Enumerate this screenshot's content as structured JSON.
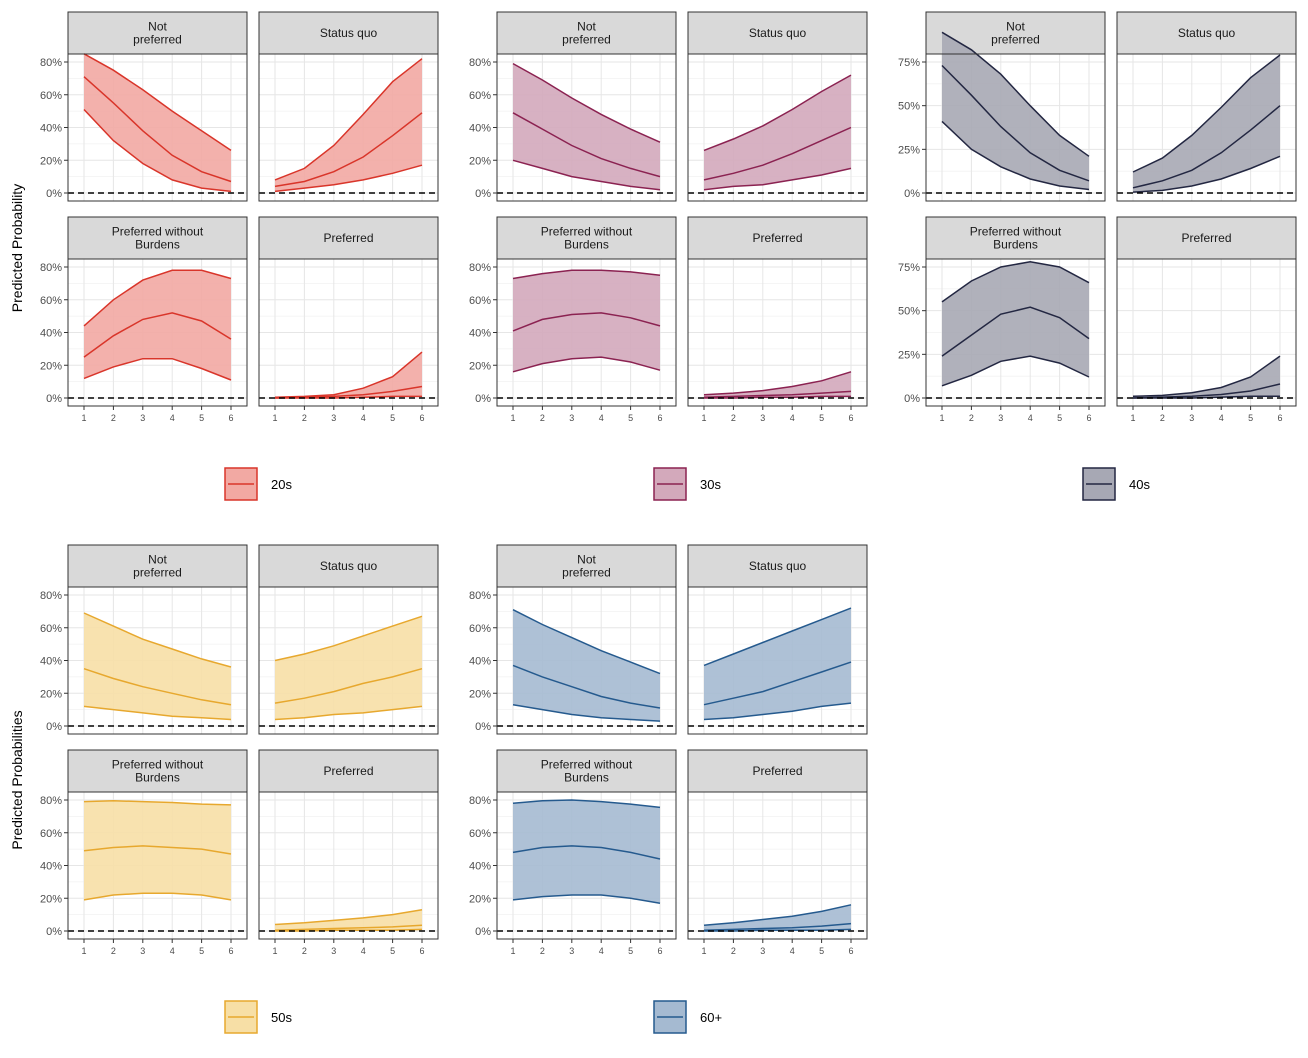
{
  "chart_data": [
    {
      "type": "line",
      "group": "20s",
      "ylabel": "Predicted Probability",
      "y_tick_labels": [
        "0%",
        "20%",
        "40%",
        "60%",
        "80%"
      ],
      "ylim": [
        0,
        0.9
      ],
      "x": [
        1,
        2,
        3,
        4,
        5,
        6
      ],
      "color": "#d9352a",
      "fill": "#f2a9a3",
      "legend_label": "20s",
      "facets": [
        {
          "label": "Not\npreferred",
          "estimate": [
            0.71,
            0.55,
            0.38,
            0.23,
            0.13,
            0.07
          ],
          "lower": [
            0.51,
            0.32,
            0.18,
            0.08,
            0.03,
            0.01
          ],
          "upper": [
            0.85,
            0.75,
            0.63,
            0.5,
            0.38,
            0.26
          ]
        },
        {
          "label": "Status quo",
          "estimate": [
            0.04,
            0.07,
            0.13,
            0.22,
            0.35,
            0.49
          ],
          "lower": [
            0.01,
            0.03,
            0.05,
            0.08,
            0.12,
            0.17
          ],
          "upper": [
            0.08,
            0.15,
            0.29,
            0.48,
            0.68,
            0.82
          ]
        },
        {
          "label": "Preferred without\nBurdens",
          "estimate": [
            0.25,
            0.38,
            0.48,
            0.52,
            0.47,
            0.36
          ],
          "lower": [
            0.12,
            0.19,
            0.24,
            0.24,
            0.18,
            0.11
          ],
          "upper": [
            0.44,
            0.6,
            0.72,
            0.78,
            0.78,
            0.73
          ]
        },
        {
          "label": "Preferred",
          "estimate": [
            0.0,
            0.005,
            0.01,
            0.02,
            0.04,
            0.07
          ],
          "lower": [
            0.0,
            0.0,
            0.0,
            0.005,
            0.01,
            0.01
          ],
          "upper": [
            0.005,
            0.01,
            0.02,
            0.06,
            0.13,
            0.28
          ]
        }
      ]
    },
    {
      "type": "line",
      "group": "30s",
      "ylabel": "",
      "y_tick_labels": [
        "0%",
        "20%",
        "40%",
        "60%",
        "80%"
      ],
      "ylim": [
        0,
        0.8
      ],
      "x": [
        1,
        2,
        3,
        4,
        5,
        6
      ],
      "color": "#8b2251",
      "fill": "#d3a9bb",
      "legend_label": "30s",
      "facets": [
        {
          "label": "Not\npreferred",
          "estimate": [
            0.49,
            0.39,
            0.29,
            0.21,
            0.15,
            0.1
          ],
          "lower": [
            0.2,
            0.15,
            0.1,
            0.07,
            0.04,
            0.02
          ],
          "upper": [
            0.79,
            0.69,
            0.58,
            0.48,
            0.39,
            0.31
          ]
        },
        {
          "label": "Status quo",
          "estimate": [
            0.08,
            0.12,
            0.17,
            0.24,
            0.32,
            0.4
          ],
          "lower": [
            0.02,
            0.04,
            0.05,
            0.08,
            0.11,
            0.15
          ],
          "upper": [
            0.26,
            0.33,
            0.41,
            0.51,
            0.62,
            0.72
          ]
        },
        {
          "label": "Preferred without\nBurdens",
          "estimate": [
            0.41,
            0.48,
            0.51,
            0.52,
            0.49,
            0.44
          ],
          "lower": [
            0.16,
            0.21,
            0.24,
            0.25,
            0.22,
            0.17
          ],
          "upper": [
            0.73,
            0.76,
            0.78,
            0.78,
            0.77,
            0.75
          ]
        },
        {
          "label": "Preferred",
          "estimate": [
            0.005,
            0.01,
            0.015,
            0.02,
            0.03,
            0.04
          ],
          "lower": [
            0.0,
            0.0,
            0.005,
            0.005,
            0.01,
            0.01
          ],
          "upper": [
            0.02,
            0.03,
            0.045,
            0.07,
            0.105,
            0.16
          ]
        }
      ]
    },
    {
      "type": "line",
      "group": "40s",
      "ylabel": "",
      "y_tick_labels": [
        "0%",
        "25%",
        "50%",
        "75%"
      ],
      "ylim": [
        0,
        0.95
      ],
      "x": [
        1,
        2,
        3,
        4,
        5,
        6
      ],
      "color": "#232742",
      "fill": "#a7a8b4",
      "legend_label": "40s",
      "facets": [
        {
          "label": "Not\npreferred",
          "estimate": [
            0.73,
            0.56,
            0.38,
            0.23,
            0.13,
            0.07
          ],
          "lower": [
            0.41,
            0.25,
            0.15,
            0.08,
            0.04,
            0.02
          ],
          "upper": [
            0.92,
            0.82,
            0.68,
            0.5,
            0.33,
            0.21
          ]
        },
        {
          "label": "Status quo",
          "estimate": [
            0.03,
            0.07,
            0.13,
            0.23,
            0.36,
            0.5
          ],
          "lower": [
            0.005,
            0.015,
            0.04,
            0.08,
            0.14,
            0.21
          ],
          "upper": [
            0.12,
            0.2,
            0.33,
            0.49,
            0.66,
            0.79
          ]
        },
        {
          "label": "Preferred without\nBurdens",
          "estimate": [
            0.24,
            0.36,
            0.48,
            0.52,
            0.46,
            0.34
          ],
          "lower": [
            0.07,
            0.13,
            0.21,
            0.24,
            0.2,
            0.12
          ],
          "upper": [
            0.55,
            0.67,
            0.75,
            0.78,
            0.75,
            0.66
          ]
        },
        {
          "label": "Preferred",
          "estimate": [
            0.0,
            0.005,
            0.01,
            0.02,
            0.04,
            0.08
          ],
          "lower": [
            0.0,
            0.0,
            0.0,
            0.005,
            0.01,
            0.01
          ],
          "upper": [
            0.01,
            0.015,
            0.03,
            0.06,
            0.12,
            0.24
          ]
        }
      ]
    },
    {
      "type": "line",
      "group": "50s",
      "ylabel": "Predicted Probabilities",
      "y_tick_labels": [
        "0%",
        "20%",
        "40%",
        "60%",
        "80%"
      ],
      "ylim": [
        0,
        0.8
      ],
      "x": [
        1,
        2,
        3,
        4,
        5,
        6
      ],
      "color": "#e7a82e",
      "fill": "#f7dfa6",
      "legend_label": "50s",
      "facets": [
        {
          "label": "Not\npreferred",
          "estimate": [
            0.35,
            0.29,
            0.24,
            0.2,
            0.16,
            0.13
          ],
          "lower": [
            0.12,
            0.1,
            0.08,
            0.06,
            0.05,
            0.04
          ],
          "upper": [
            0.69,
            0.61,
            0.53,
            0.47,
            0.41,
            0.36
          ]
        },
        {
          "label": "Status quo",
          "estimate": [
            0.14,
            0.17,
            0.21,
            0.26,
            0.3,
            0.35
          ],
          "lower": [
            0.04,
            0.05,
            0.07,
            0.08,
            0.1,
            0.12
          ],
          "upper": [
            0.4,
            0.44,
            0.49,
            0.55,
            0.61,
            0.67
          ]
        },
        {
          "label": "Preferred without\nBurdens",
          "estimate": [
            0.49,
            0.51,
            0.52,
            0.51,
            0.5,
            0.47
          ],
          "lower": [
            0.19,
            0.22,
            0.23,
            0.23,
            0.22,
            0.19
          ],
          "upper": [
            0.79,
            0.795,
            0.79,
            0.785,
            0.775,
            0.77
          ]
        },
        {
          "label": "Preferred",
          "estimate": [
            0.005,
            0.01,
            0.015,
            0.02,
            0.025,
            0.035
          ],
          "lower": [
            0.0,
            0.0,
            0.005,
            0.005,
            0.005,
            0.01
          ],
          "upper": [
            0.04,
            0.05,
            0.065,
            0.08,
            0.1,
            0.13
          ]
        }
      ]
    },
    {
      "type": "line",
      "group": "60+",
      "ylabel": "",
      "y_tick_labels": [
        "0%",
        "20%",
        "40%",
        "60%",
        "80%"
      ],
      "ylim": [
        0,
        0.8
      ],
      "x": [
        1,
        2,
        3,
        4,
        5,
        6
      ],
      "color": "#255a8e",
      "fill": "#a5bad1",
      "legend_label": "60+",
      "facets": [
        {
          "label": "Not\npreferred",
          "estimate": [
            0.37,
            0.3,
            0.24,
            0.18,
            0.14,
            0.11
          ],
          "lower": [
            0.13,
            0.1,
            0.07,
            0.05,
            0.04,
            0.03
          ],
          "upper": [
            0.71,
            0.62,
            0.54,
            0.46,
            0.39,
            0.32
          ]
        },
        {
          "label": "Status quo",
          "estimate": [
            0.13,
            0.17,
            0.21,
            0.27,
            0.33,
            0.39
          ],
          "lower": [
            0.04,
            0.05,
            0.07,
            0.09,
            0.12,
            0.14
          ],
          "upper": [
            0.37,
            0.44,
            0.51,
            0.58,
            0.65,
            0.72
          ]
        },
        {
          "label": "Preferred without\nBurdens",
          "estimate": [
            0.48,
            0.51,
            0.52,
            0.51,
            0.48,
            0.44
          ],
          "lower": [
            0.19,
            0.21,
            0.22,
            0.22,
            0.2,
            0.17
          ],
          "upper": [
            0.78,
            0.795,
            0.8,
            0.79,
            0.775,
            0.755
          ]
        },
        {
          "label": "Preferred",
          "estimate": [
            0.005,
            0.01,
            0.015,
            0.02,
            0.03,
            0.045
          ],
          "lower": [
            0.0,
            0.0,
            0.005,
            0.005,
            0.005,
            0.01
          ],
          "upper": [
            0.035,
            0.05,
            0.07,
            0.09,
            0.12,
            0.16
          ]
        }
      ]
    }
  ]
}
